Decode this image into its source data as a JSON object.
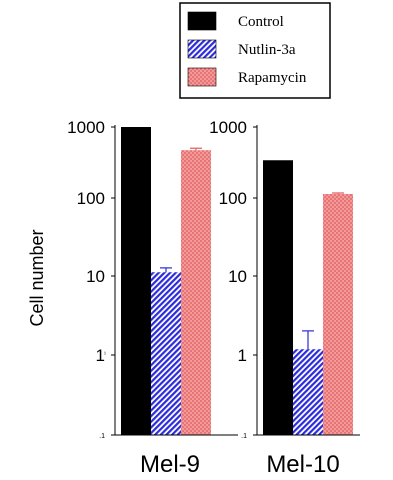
{
  "chart_data": [
    {
      "type": "bar",
      "panel": "Mel-9",
      "xlabel": "Mel-9",
      "ylabel": "Cell number",
      "yscale": "log",
      "ylim": [
        0.1,
        1000
      ],
      "yticks": [
        "1000",
        "100",
        "10",
        "1",
        ".1"
      ],
      "series": [
        {
          "name": "Control",
          "value": 1000,
          "error": 0
        },
        {
          "name": "Nutlin-3a",
          "value": 13,
          "error": 1.8
        },
        {
          "name": "Rapamycin",
          "value": 500,
          "error": 30
        }
      ]
    },
    {
      "type": "bar",
      "panel": "Mel-10",
      "xlabel": "Mel-10",
      "yscale": "log",
      "ylim": [
        0.1,
        1000
      ],
      "yticks": [
        "1000",
        "100",
        "10",
        "1",
        ".1"
      ],
      "series": [
        {
          "name": "Control",
          "value": 370,
          "error": 0
        },
        {
          "name": "Nutlin-3a",
          "value": 1.3,
          "error": 0.95
        },
        {
          "name": "Rapamycin",
          "value": 135,
          "error": 4
        }
      ]
    }
  ],
  "legend": {
    "position": "top-right",
    "items": [
      {
        "label": "Control",
        "pattern": "solid",
        "color": "#000000"
      },
      {
        "label": "Nutlin-3a",
        "pattern": "hatch",
        "color": "#2b2bdc"
      },
      {
        "label": "Rapamycin",
        "pattern": "dots",
        "color": "#f08c8c"
      }
    ]
  },
  "tick_marks_extra": "1 ¹"
}
